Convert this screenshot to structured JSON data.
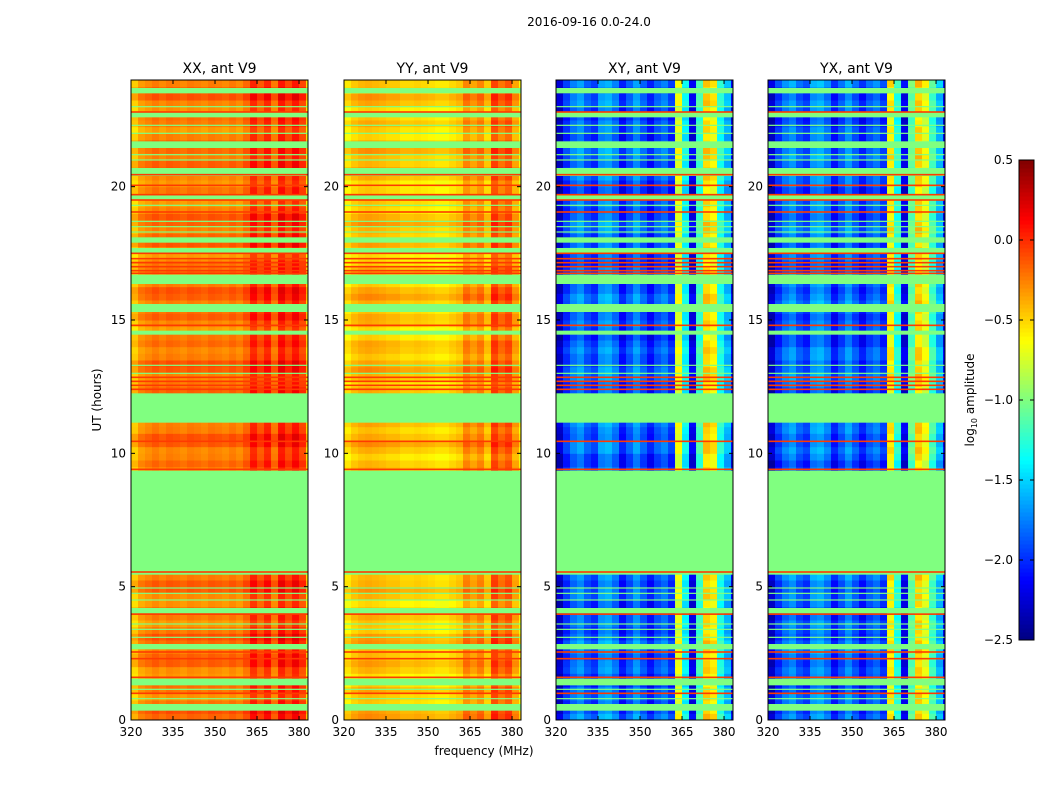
{
  "figure": {
    "title": "2016-09-16 0.0-24.0",
    "ylabel": "UT (hours)",
    "xlabel": "frequency (MHz)"
  },
  "chart_data": {
    "type": "heatmap",
    "xlim": [
      320,
      383.2
    ],
    "ylim": [
      0,
      24
    ],
    "xticks": [
      320,
      335,
      350,
      365,
      380
    ],
    "yticks": [
      0,
      5,
      10,
      15,
      20
    ],
    "freq_bin_start": 320,
    "freq_bin_step": 2.5,
    "time_bin_step": 0.25,
    "flag_value": -1.0,
    "flagged_hours": [
      [
        0.35,
        0.6
      ],
      [
        1.3,
        1.55
      ],
      [
        2.65,
        2.85
      ],
      [
        4.0,
        4.2
      ],
      [
        5.45,
        9.35
      ],
      [
        11.15,
        12.25
      ],
      [
        14.45,
        14.6
      ],
      [
        15.3,
        15.6
      ],
      [
        16.35,
        16.7
      ],
      [
        17.5,
        17.7
      ],
      [
        17.9,
        18.1
      ],
      [
        19.5,
        19.7
      ],
      [
        20.4,
        20.7
      ],
      [
        21.45,
        21.7
      ],
      [
        22.6,
        22.8
      ],
      [
        23.5,
        23.7
      ]
    ],
    "thin_flag_hours": [
      0.8,
      1.15,
      3.1,
      3.4,
      3.6,
      4.5,
      4.75,
      4.95,
      13.0,
      13.3,
      18.3,
      18.5,
      18.7,
      19.3,
      21.0,
      21.2,
      22.0,
      22.3,
      23.0
    ],
    "red_line_hours": [
      1.0,
      1.6,
      2.3,
      2.55,
      3.97,
      5.55,
      9.4,
      10.45,
      12.4,
      12.55,
      12.7,
      12.85,
      14.8,
      16.75,
      16.85,
      17.0,
      17.15,
      17.3,
      17.5,
      19.05,
      19.5,
      19.7,
      20.05,
      20.45,
      22.8
    ],
    "panels": [
      {
        "title": "XX, ant V9",
        "freq_profile": [
          -0.45,
          -0.3,
          -0.25,
          -0.2,
          -0.25,
          -0.2,
          -0.22,
          -0.25,
          -0.2,
          -0.22,
          -0.25,
          -0.2,
          -0.22,
          -0.25,
          -0.2,
          -0.25,
          -0.15,
          0.05,
          -0.1,
          0.05,
          -0.2,
          0.1,
          -0.05,
          0.1,
          -0.05,
          -0.5
        ]
      },
      {
        "title": "YY, ant V9",
        "freq_profile": [
          -0.55,
          -0.45,
          -0.4,
          -0.38,
          -0.4,
          -0.42,
          -0.45,
          -0.45,
          -0.5,
          -0.5,
          -0.48,
          -0.5,
          -0.52,
          -0.55,
          -0.55,
          -0.5,
          -0.45,
          -0.25,
          -0.35,
          -0.25,
          -0.45,
          -0.05,
          -0.2,
          -0.1,
          -0.35,
          -0.6
        ]
      },
      {
        "title": "XY, ant V9",
        "freq_profile": [
          -2.3,
          -2.0,
          -1.8,
          -1.7,
          -1.9,
          -2.0,
          -1.7,
          -1.65,
          -1.8,
          -2.1,
          -1.9,
          -1.7,
          -1.9,
          -2.1,
          -1.9,
          -1.8,
          -2.0,
          -0.7,
          -1.4,
          -2.2,
          -1.2,
          -0.5,
          -0.6,
          -1.3,
          -1.6,
          -2.2
        ]
      },
      {
        "title": "YX, ant V9",
        "freq_profile": [
          -2.3,
          -2.0,
          -1.8,
          -1.7,
          -1.9,
          -2.0,
          -1.7,
          -1.65,
          -1.8,
          -2.1,
          -1.9,
          -1.7,
          -1.9,
          -2.1,
          -1.9,
          -1.8,
          -2.0,
          -0.6,
          -1.3,
          -2.2,
          -1.1,
          -0.5,
          -0.7,
          -1.2,
          -1.6,
          -2.2
        ]
      }
    ],
    "colorbar": {
      "colormap": "jet",
      "min": -2.5,
      "max": 0.5,
      "ticks": [
        -2.5,
        -2.0,
        -1.5,
        -1.0,
        -0.5,
        0.0,
        0.5
      ],
      "label_base": "log",
      "label_sub": "10",
      "label_rest": " amplitude"
    }
  }
}
